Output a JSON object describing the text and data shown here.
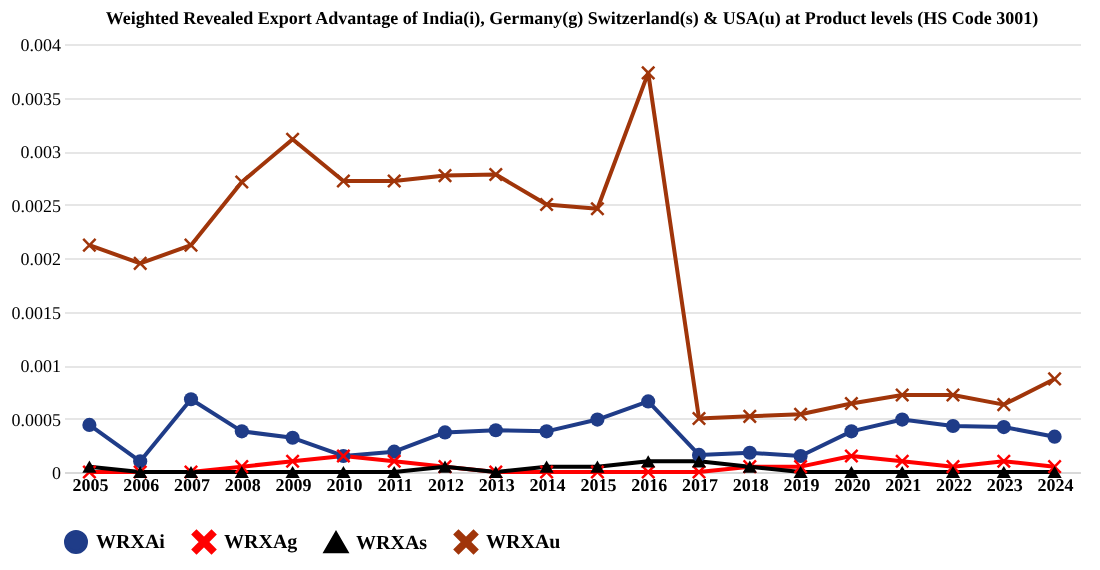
{
  "chart_data": {
    "type": "line",
    "title": "Weighted Revealed Export Advantage of India(i), Germany(g) Switzerland(s) & USA(u) at Product levels (HS Code 3001)",
    "categories": [
      "2005",
      "2006",
      "2007",
      "2008",
      "2009",
      "2010",
      "2011",
      "2012",
      "2013",
      "2014",
      "2015",
      "2016",
      "2017",
      "2018",
      "2019",
      "2020",
      "2021",
      "2022",
      "2023",
      "2024"
    ],
    "series": [
      {
        "name": "WRXAi",
        "color": "#1f3c88",
        "marker": "circle",
        "values": [
          0.00044,
          0.0001,
          0.00068,
          0.00038,
          0.00032,
          0.00015,
          0.00019,
          0.00037,
          0.00039,
          0.00038,
          0.00049,
          0.00066,
          0.00016,
          0.00018,
          0.00015,
          0.00038,
          0.00049,
          0.00043,
          0.00042,
          0.00033
        ]
      },
      {
        "name": "WRXAg",
        "color": "#ff0000",
        "marker": "cross",
        "values": [
          0,
          0,
          0,
          5e-05,
          0.0001,
          0.00015,
          0.0001,
          5e-05,
          0,
          0,
          0,
          0,
          0,
          5e-05,
          5e-05,
          0.00015,
          0.0001,
          5e-05,
          0.0001,
          5e-05
        ]
      },
      {
        "name": "WRXAs",
        "color": "#000000",
        "marker": "triangle",
        "values": [
          5e-05,
          0,
          0,
          0,
          0,
          0,
          0,
          5e-05,
          0,
          5e-05,
          5e-05,
          0.0001,
          0.0001,
          5e-05,
          0,
          0,
          0,
          0,
          0,
          0
        ]
      },
      {
        "name": "WRXAu",
        "color": "#a0350a",
        "marker": "cross",
        "values": [
          0.00212,
          0.00195,
          0.00212,
          0.00271,
          0.00311,
          0.00272,
          0.00272,
          0.00277,
          0.00278,
          0.0025,
          0.00246,
          0.00373,
          0.0005,
          0.00052,
          0.00054,
          0.00064,
          0.00072,
          0.00072,
          0.00063,
          0.00087
        ]
      }
    ],
    "ylim": [
      0,
      0.004
    ],
    "yticks": [
      0,
      0.0005,
      0.001,
      0.0015,
      0.002,
      0.0025,
      0.003,
      0.0035,
      0.004
    ],
    "grid": "y",
    "legend": "bottom",
    "line_style": "solid"
  }
}
